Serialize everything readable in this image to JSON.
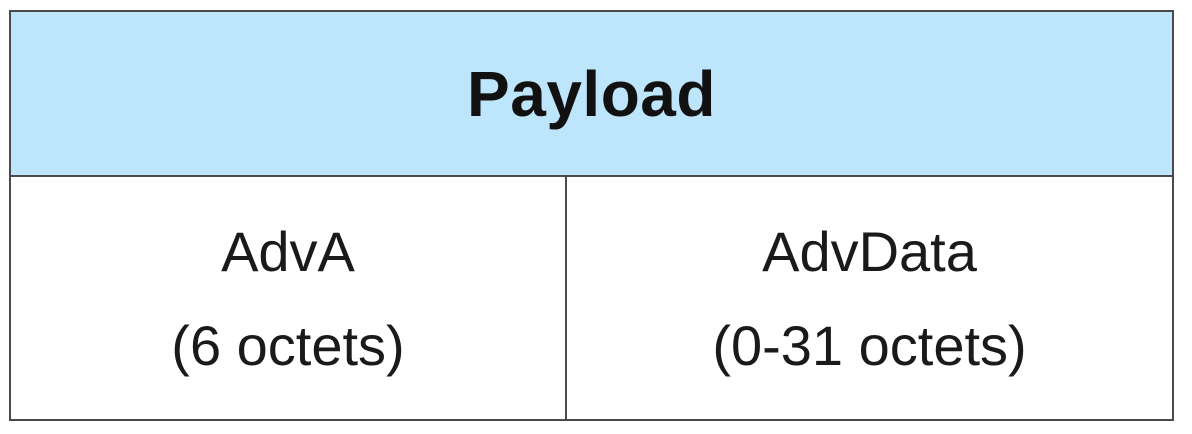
{
  "payload": {
    "title": "Payload",
    "fields": [
      {
        "name": "AdvA",
        "size": "(6 octets)"
      },
      {
        "name": "AdvData",
        "size": "(0-31 octets)"
      }
    ]
  },
  "colors": {
    "header_background": "#bde5fb",
    "border": "#4a4a4a",
    "text": "#111111"
  }
}
